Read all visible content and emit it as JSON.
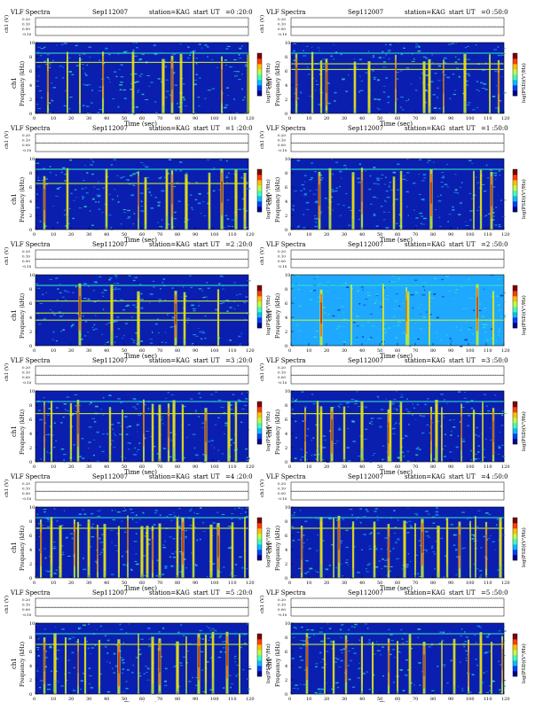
{
  "page": {
    "columns": 2,
    "rows": 6
  },
  "panel_text": {
    "title": "VLF Spectra",
    "date": "Sep112007",
    "station": "station=KAG",
    "start_prefix": "start  UT",
    "xlabel": "Time  (sec)",
    "ylabel_freq": "Frequency  (kHz)",
    "channel_label": "ch1",
    "ylabel_volt": "ch1 (V)",
    "colorbar_label": "log(PSD)(V²/Hz)",
    "volt_ticks": [
      "0.20",
      "0.10",
      "0.00",
      "-0.10"
    ],
    "freq_ticks": [
      "0",
      "2",
      "4",
      "6",
      "8",
      "10"
    ],
    "time_ticks": [
      "0",
      "10",
      "20",
      "30",
      "40",
      "50",
      "60",
      "70",
      "80",
      "90",
      "100",
      "110",
      "120"
    ]
  },
  "colors": {
    "low": "#0a1fb0",
    "mid": "#1ea8ff",
    "high": "#33e0c0",
    "hot1": "#c8f030",
    "hot2": "#ffd400",
    "hot3": "#ff5a00",
    "hot4": "#c00000",
    "colorbar": [
      "#00008f",
      "#0040ff",
      "#00c0ff",
      "#40ffbf",
      "#bfff40",
      "#ffc000",
      "#ff4000",
      "#800000"
    ]
  },
  "chart_data": [
    {
      "type": "heatmap",
      "start_ut": "=0 :20:0",
      "x_range": [
        0,
        120
      ],
      "y_range": [
        0,
        10
      ],
      "background_level": 0.45,
      "burst_times": [
        7,
        18,
        25,
        38,
        55,
        72,
        77,
        82,
        89,
        105,
        120
      ],
      "line_freqs": [
        8.5,
        7.2
      ]
    },
    {
      "type": "heatmap",
      "start_ut": "=0 :50:0",
      "x_range": [
        0,
        120
      ],
      "y_range": [
        0,
        10
      ],
      "background_level": 0.4,
      "burst_times": [
        3,
        12,
        17,
        20,
        36,
        44,
        59,
        75,
        78,
        86,
        98,
        112,
        117
      ],
      "line_freqs": [
        8.5,
        7.0,
        6.2
      ]
    },
    {
      "type": "heatmap",
      "start_ut": "=1 :20:0",
      "x_range": [
        0,
        120
      ],
      "y_range": [
        0,
        10
      ],
      "background_level": 0.3,
      "burst_times": [
        5,
        18,
        40,
        58,
        62,
        74,
        77,
        85,
        98,
        105,
        113,
        118
      ],
      "line_freqs": [
        8.5,
        6.5
      ]
    },
    {
      "type": "heatmap",
      "start_ut": "=1 :50:0",
      "x_range": [
        0,
        120
      ],
      "y_range": [
        0,
        10
      ],
      "background_level": 0.2,
      "burst_times": [
        16,
        22,
        35,
        40,
        58,
        62,
        79,
        103,
        107,
        113
      ],
      "line_freqs": [
        8.5
      ]
    },
    {
      "type": "heatmap",
      "start_ut": "=2 :20:0",
      "x_range": [
        0,
        120
      ],
      "y_range": [
        0,
        10
      ],
      "background_level": 0.25,
      "burst_times": [
        25,
        43,
        58,
        79,
        84,
        103
      ],
      "line_freqs": [
        8.5,
        6.3,
        4.6,
        3.6
      ]
    },
    {
      "type": "heatmap",
      "start_ut": "=2 :50:0",
      "x_range": [
        0,
        120
      ],
      "y_range": [
        0,
        10
      ],
      "background_level": 0.55,
      "burst_times": [
        17,
        34,
        52,
        65,
        66,
        78,
        105,
        114
      ],
      "line_freqs": [
        8.5,
        3.6
      ]
    },
    {
      "type": "heatmap",
      "start_ut": "=3 :20:0",
      "x_range": [
        0,
        120
      ],
      "y_range": [
        0,
        10
      ],
      "background_level": 0.25,
      "burst_times": [
        5,
        9,
        20,
        24,
        42,
        49,
        61,
        66,
        70,
        75,
        78,
        83,
        96,
        109,
        113
      ],
      "line_freqs": [
        8.5,
        6.8
      ]
    },
    {
      "type": "heatmap",
      "start_ut": "=3 :50:0",
      "x_range": [
        0,
        120
      ],
      "y_range": [
        0,
        10
      ],
      "background_level": 0.25,
      "burst_times": [
        8,
        15,
        17,
        23,
        30,
        40,
        55,
        56,
        62,
        79,
        82,
        85,
        96,
        103,
        108,
        114
      ],
      "line_freqs": [
        8.5,
        6.8
      ]
    },
    {
      "type": "heatmap",
      "start_ut": "=4 :20:0",
      "x_range": [
        0,
        120
      ],
      "y_range": [
        0,
        10
      ],
      "background_level": 0.35,
      "burst_times": [
        3,
        9,
        14,
        22,
        24,
        30,
        35,
        39,
        47,
        52,
        60,
        63,
        66,
        70,
        80,
        83,
        89,
        99,
        103,
        111,
        118
      ],
      "line_freqs": [
        8.5,
        7.0
      ]
    },
    {
      "type": "heatmap",
      "start_ut": "=4 :50:0",
      "x_range": [
        0,
        120
      ],
      "y_range": [
        0,
        10
      ],
      "background_level": 0.35,
      "burst_times": [
        6,
        17,
        24,
        27,
        35,
        47,
        55,
        64,
        70,
        74,
        83,
        88,
        95,
        101,
        104,
        110,
        118
      ],
      "line_freqs": [
        8.5,
        7.0
      ]
    },
    {
      "type": "heatmap",
      "start_ut": "=5 :20:0",
      "x_range": [
        0,
        120
      ],
      "y_range": [
        0,
        10
      ],
      "background_level": 0.4,
      "burst_times": [
        5,
        11,
        17,
        24,
        28,
        36,
        47,
        58,
        66,
        70,
        80,
        85,
        92,
        96,
        100,
        108,
        115
      ],
      "line_freqs": [
        8.5,
        7.0
      ]
    },
    {
      "type": "heatmap",
      "start_ut": "=5 :50:0",
      "x_range": [
        0,
        120
      ],
      "y_range": [
        0,
        10
      ],
      "background_level": 0.4,
      "burst_times": [
        9,
        19,
        24,
        31,
        40,
        46,
        55,
        60,
        67,
        75,
        85,
        92,
        100,
        107,
        113,
        119
      ],
      "line_freqs": [
        8.5,
        7.0
      ]
    }
  ]
}
